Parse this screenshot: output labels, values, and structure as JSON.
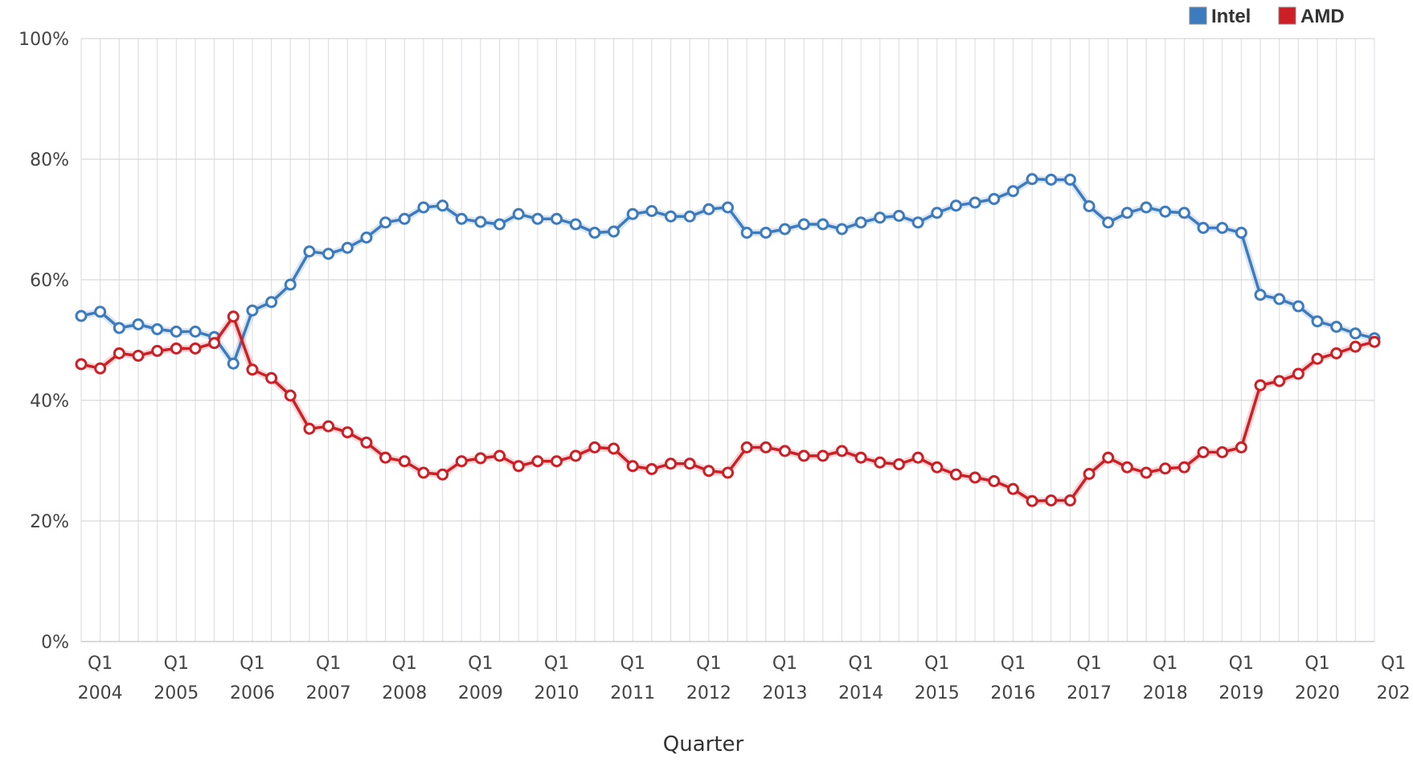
{
  "chart_data": {
    "type": "line",
    "title": "",
    "xlabel": "Quarter",
    "ylabel": "",
    "ylim": [
      0,
      100
    ],
    "yticks": [
      "0%",
      "20%",
      "40%",
      "60%",
      "80%",
      "100%"
    ],
    "x_tick_quarter_label": "Q1",
    "x_tick_years": [
      "2004",
      "2005",
      "2006",
      "2007",
      "2008",
      "2009",
      "2010",
      "2011",
      "2012",
      "2013",
      "2014",
      "2015",
      "2016",
      "2017",
      "2018",
      "2019",
      "2020",
      "202"
    ],
    "grid": true,
    "legend_position": "top-right",
    "series": [
      {
        "name": "Intel",
        "color": "#3d7bbf",
        "values": [
          54.0,
          54.7,
          52.0,
          52.6,
          51.8,
          51.4,
          51.4,
          50.5,
          46.1,
          54.9,
          56.3,
          59.2,
          64.7,
          64.3,
          65.3,
          67.0,
          69.5,
          70.1,
          72.0,
          72.3,
          70.1,
          69.6,
          69.2,
          70.9,
          70.1,
          70.1,
          69.2,
          67.8,
          68.0,
          70.9,
          71.4,
          70.5,
          70.5,
          71.7,
          72.0,
          67.8,
          67.8,
          68.4,
          69.2,
          69.2,
          68.4,
          69.5,
          70.3,
          70.6,
          69.5,
          71.1,
          72.3,
          72.8,
          73.4,
          74.7,
          76.7,
          76.6,
          76.6,
          72.2,
          69.5,
          71.1,
          72.0,
          71.3,
          71.1,
          68.6,
          68.6,
          67.8,
          57.5,
          56.8,
          55.6,
          53.1,
          52.2,
          51.1,
          50.3
        ]
      },
      {
        "name": "AMD",
        "color": "#cc1f26",
        "values": [
          46.0,
          45.3,
          47.8,
          47.4,
          48.2,
          48.6,
          48.6,
          49.5,
          53.9,
          45.1,
          43.7,
          40.8,
          35.3,
          35.7,
          34.7,
          33.0,
          30.5,
          29.9,
          28.0,
          27.7,
          29.9,
          30.4,
          30.8,
          29.1,
          29.9,
          29.9,
          30.8,
          32.2,
          32.0,
          29.1,
          28.6,
          29.5,
          29.5,
          28.3,
          28.0,
          32.2,
          32.2,
          31.6,
          30.8,
          30.8,
          31.6,
          30.5,
          29.7,
          29.4,
          30.5,
          28.9,
          27.7,
          27.2,
          26.6,
          25.3,
          23.3,
          23.4,
          23.4,
          27.8,
          30.5,
          28.9,
          28.0,
          28.7,
          28.9,
          31.4,
          31.4,
          32.2,
          42.5,
          43.2,
          44.4,
          46.9,
          47.8,
          48.9,
          49.7
        ]
      }
    ]
  }
}
